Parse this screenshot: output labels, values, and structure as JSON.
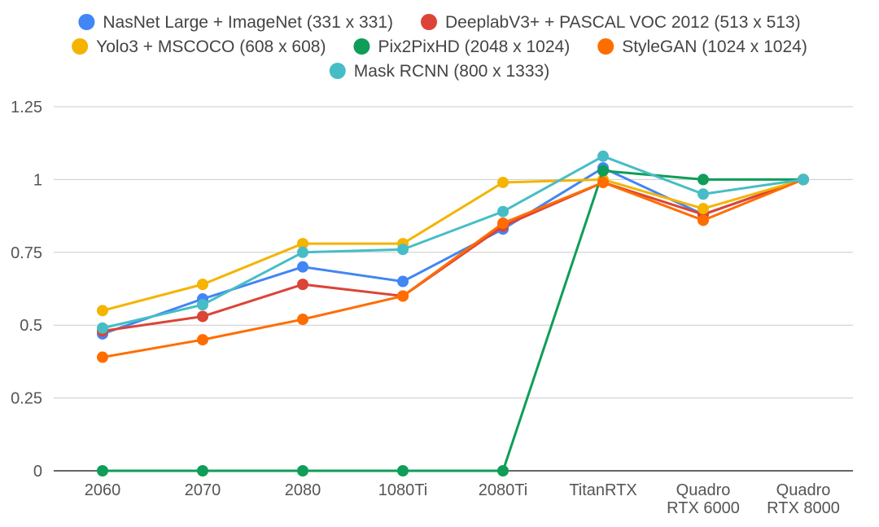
{
  "chart_data": {
    "type": "line",
    "title": "",
    "xlabel": "",
    "ylabel": "",
    "categories": [
      [
        "2060"
      ],
      [
        "2070"
      ],
      [
        "2080"
      ],
      [
        "1080Ti"
      ],
      [
        "2080Ti"
      ],
      [
        "TitanRTX"
      ],
      [
        "Quadro",
        "RTX 6000"
      ],
      [
        "Quadro",
        "RTX 8000"
      ]
    ],
    "ylim": [
      0,
      1.25
    ],
    "yticks": [
      0,
      0.25,
      0.5,
      0.75,
      1,
      1.25
    ],
    "ytick_labels": [
      "0",
      "0.25",
      "0.5",
      "0.75",
      "1",
      "1.25"
    ],
    "grid": true,
    "legend_position": "top",
    "series": [
      {
        "name": "NasNet Large + ImageNet (331 x 331)",
        "color": "#4285F4",
        "values": [
          0.47,
          0.59,
          0.7,
          0.65,
          0.83,
          1.04,
          0.88,
          1.0
        ]
      },
      {
        "name": "DeeplabV3+ + PASCAL VOC 2012 (513 x 513)",
        "color": "#DB4437",
        "values": [
          0.48,
          0.53,
          0.64,
          0.6,
          0.84,
          0.99,
          0.88,
          1.0
        ]
      },
      {
        "name": "Yolo3 + MSCOCO (608 x 608)",
        "color": "#F4B400",
        "values": [
          0.55,
          0.64,
          0.78,
          0.78,
          0.99,
          1.0,
          0.9,
          1.0
        ]
      },
      {
        "name": "Pix2PixHD (2048 x 1024)",
        "color": "#0F9D58",
        "values": [
          0.0,
          0.0,
          0.0,
          0.0,
          0.0,
          1.03,
          1.0,
          1.0
        ]
      },
      {
        "name": "StyleGAN (1024 x 1024)",
        "color": "#FF6D00",
        "values": [
          0.39,
          0.45,
          0.52,
          0.6,
          0.85,
          0.99,
          0.86,
          1.0
        ]
      },
      {
        "name": "Mask RCNN (800 x 1333)",
        "color": "#46BDC6",
        "values": [
          0.49,
          0.57,
          0.75,
          0.76,
          0.89,
          1.08,
          0.95,
          1.0
        ]
      }
    ],
    "legend_rows": [
      [
        0,
        1
      ],
      [
        2,
        3,
        4
      ],
      [
        5
      ]
    ]
  }
}
